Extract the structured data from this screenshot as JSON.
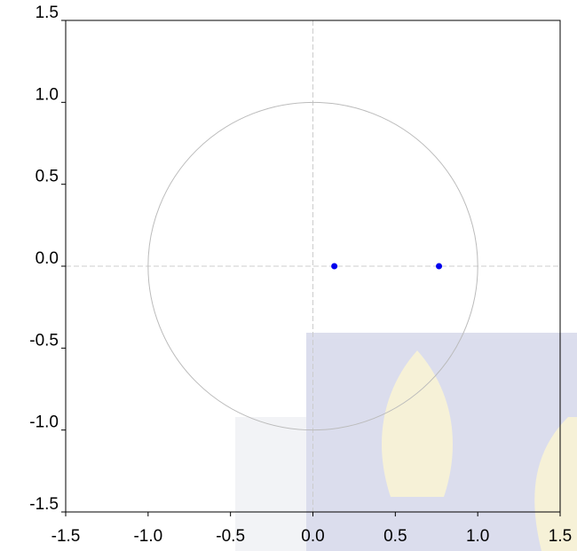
{
  "chart_data": {
    "type": "scatter",
    "x": [
      0.13,
      0.765
    ],
    "values": [
      0,
      0
    ],
    "color": "#0000ee",
    "xlim": [
      -1.5,
      1.5
    ],
    "ylim": [
      -1.5,
      1.5
    ],
    "xticks": [
      -1.5,
      {
        "value": -1,
        "label": "-1.0"
      },
      -0.5,
      {
        "value": 0,
        "label": "0.0"
      },
      0.5,
      {
        "value": 1,
        "label": "1.0"
      },
      1.5
    ],
    "yticks": [
      -1.5,
      {
        "value": -1,
        "label": "-1.0"
      },
      -0.5,
      {
        "value": 0,
        "label": "0.0"
      },
      0.5,
      {
        "value": 1,
        "label": "1.0"
      },
      1.5
    ]
  }
}
